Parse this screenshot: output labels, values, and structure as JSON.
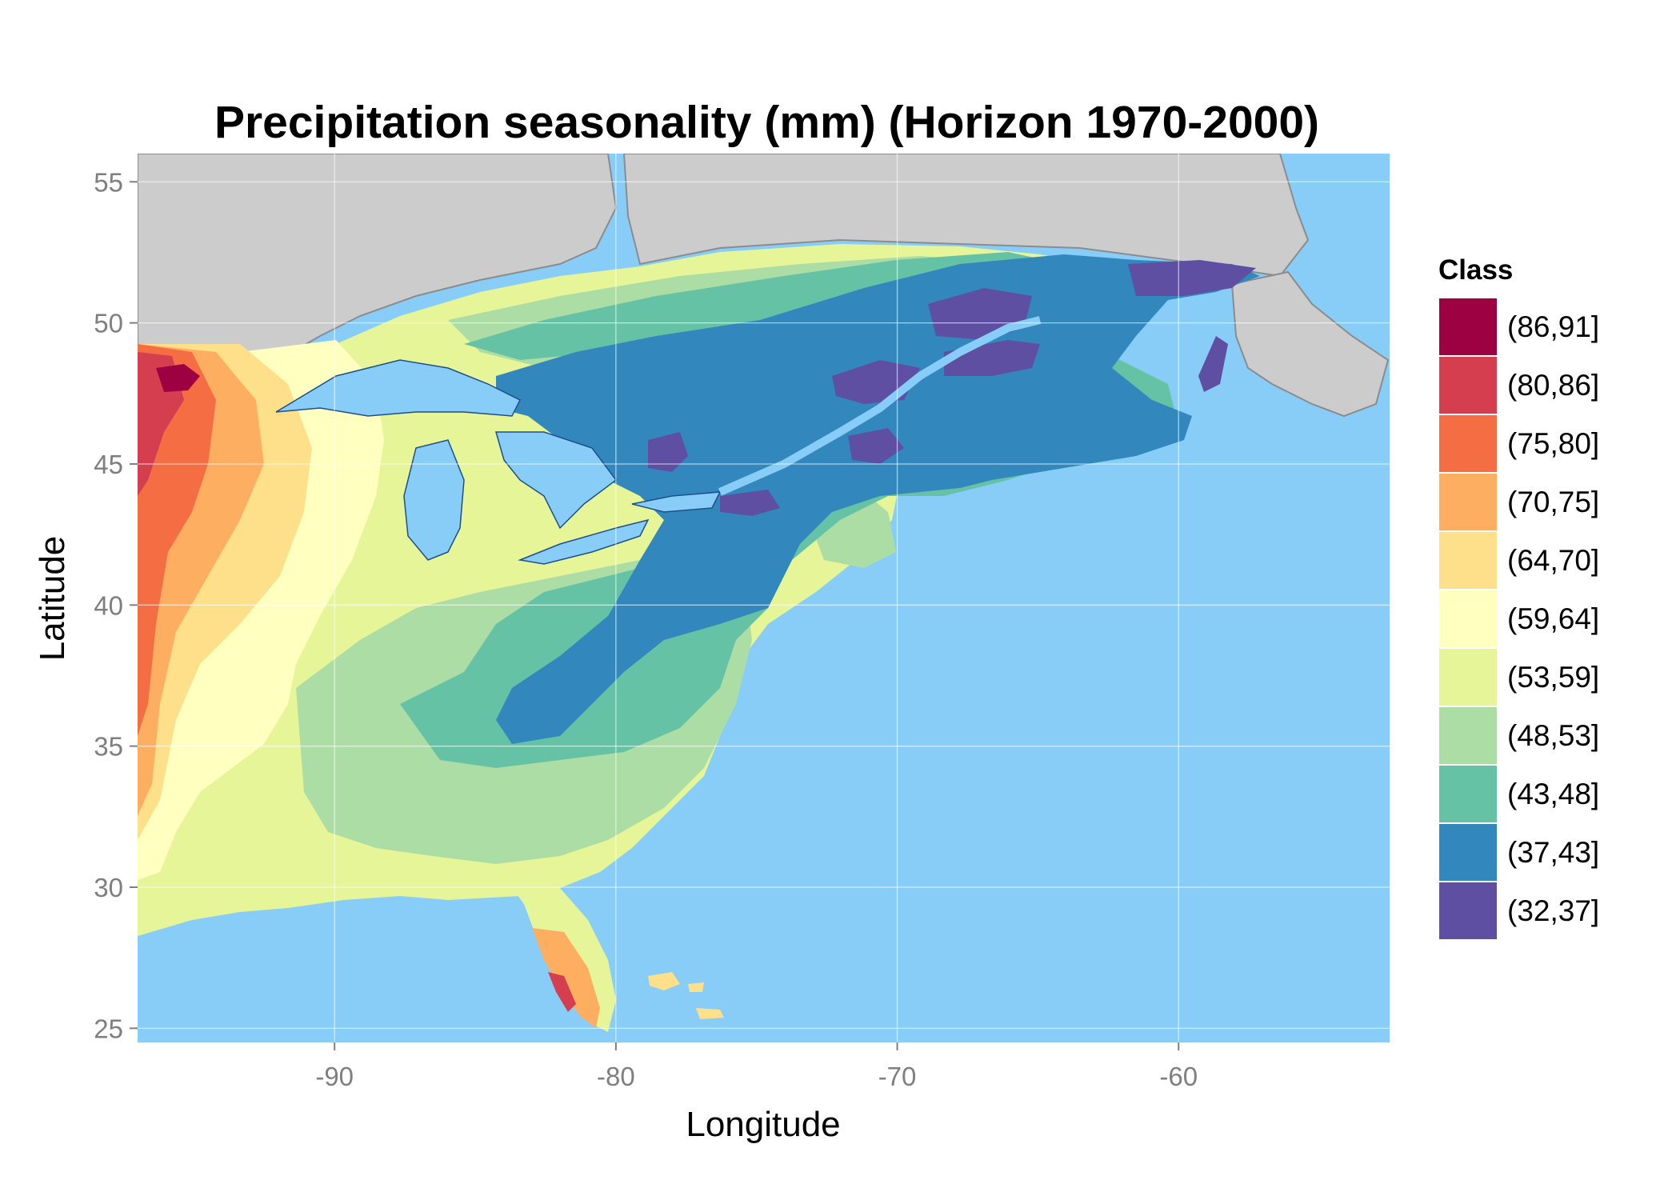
{
  "title": "Precipitation seasonality (mm) (Horizon 1970-2000)",
  "axes": {
    "x_label": "Longitude",
    "y_label": "Latitude",
    "x_ticks": [
      "-90",
      "-80",
      "-70",
      "-60"
    ],
    "y_ticks": [
      "55",
      "50",
      "45",
      "40",
      "35",
      "30",
      "25"
    ],
    "x_tick_values": [
      -90,
      -80,
      -70,
      -60
    ],
    "y_tick_values": [
      55,
      50,
      45,
      40,
      35,
      30,
      25
    ],
    "xlim": [
      -97,
      -52.5
    ],
    "ylim": [
      24.5,
      56
    ],
    "grid": true
  },
  "colors": {
    "ocean": "#87cdf8",
    "foreign_land": "#cccccc",
    "rivers": "#1e4f8a",
    "grid": "#ffffff",
    "border": "#8c8c8c"
  },
  "legend": {
    "title": "Class",
    "position": "right",
    "items": [
      {
        "label": "(86,91]",
        "color": "#9e0142"
      },
      {
        "label": "(80,86]",
        "color": "#d53e4f"
      },
      {
        "label": "(75,80]",
        "color": "#f46d43"
      },
      {
        "label": "(70,75]",
        "color": "#fdae61"
      },
      {
        "label": "(64,70]",
        "color": "#fee08b"
      },
      {
        "label": "(59,64]",
        "color": "#ffffbf"
      },
      {
        "label": "(53,59]",
        "color": "#e6f598"
      },
      {
        "label": "(48,53]",
        "color": "#abdda4"
      },
      {
        "label": "(43,48]",
        "color": "#66c2a5"
      },
      {
        "label": "(37,43]",
        "color": "#3288bd"
      },
      {
        "label": "(32,37]",
        "color": "#5e4fa2"
      }
    ]
  }
}
